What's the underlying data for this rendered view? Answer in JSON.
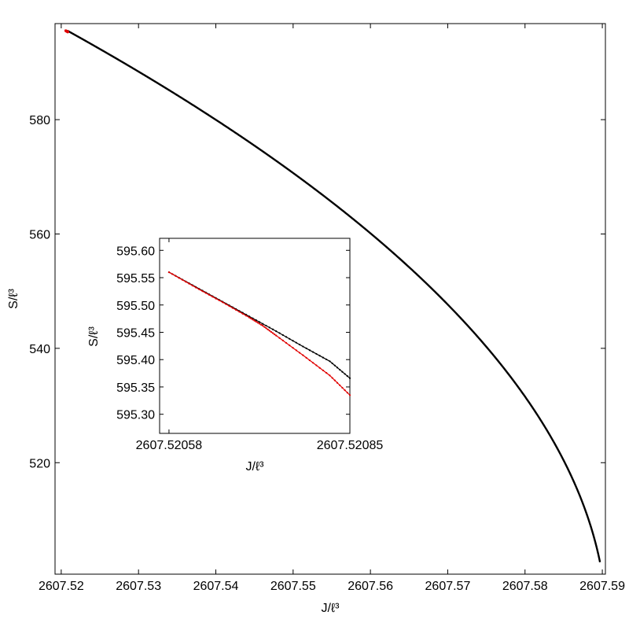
{
  "chart_data": [
    {
      "id": "main",
      "type": "scatter",
      "xlabel": "J/ℓ³",
      "ylabel": "S/ℓ³",
      "xlim": [
        2607.5192,
        2607.5904
      ],
      "ylim": [
        500.5,
        596.8
      ],
      "x_ticks": [
        2607.52,
        2607.53,
        2607.54,
        2607.55,
        2607.56,
        2607.57,
        2607.58,
        2607.59
      ],
      "x_tick_labels": [
        "2607.52",
        "2607.53",
        "2607.54",
        "2607.55",
        "2607.56",
        "2607.57",
        "2607.58",
        "2607.59"
      ],
      "y_ticks": [
        520,
        540,
        560,
        580
      ],
      "y_tick_labels": [
        "520",
        "540",
        "560",
        "580"
      ],
      "grid": false,
      "series": [
        {
          "color": "#000000",
          "curve": {
            "x_start": 2607.5208,
            "x_end": 2607.5897,
            "s_start": 595.56,
            "s_end": 502.6,
            "j_max": 2607.5906,
            "exponent": 0.5
          }
        },
        {
          "color": "#e00000",
          "x": [
            2607.52058,
            2607.52062,
            2607.52066,
            2607.5207,
            2607.52074,
            2607.52078,
            2607.52082,
            2607.52085
          ],
          "y": [
            595.56,
            595.53,
            595.5,
            595.47,
            595.44,
            595.41,
            595.37,
            595.335
          ]
        }
      ]
    },
    {
      "id": "inset",
      "type": "scatter",
      "xlabel": "J/ℓ³",
      "ylabel": "S/ℓ³",
      "xlim": [
        2607.520566,
        2607.52085
      ],
      "ylim": [
        595.265,
        595.622
      ],
      "x_ticks": [
        2607.52058,
        2607.52085
      ],
      "x_tick_labels": [
        "2607.52058",
        "2607.52085"
      ],
      "y_ticks": [
        595.3,
        595.35,
        595.4,
        595.45,
        595.5,
        595.55,
        595.6
      ],
      "y_tick_labels": [
        "595.30",
        "595.35",
        "595.40",
        "595.45",
        "595.50",
        "595.55",
        "595.60"
      ],
      "grid": false,
      "series": [
        {
          "color": "#000000",
          "x": [
            2607.52058,
            2607.52062,
            2607.52066,
            2607.5207,
            2607.52074,
            2607.52078,
            2607.52082,
            2607.52085
          ],
          "y": [
            595.56,
            595.533,
            595.506,
            595.479,
            595.452,
            595.424,
            595.397,
            595.366
          ]
        },
        {
          "color": "#e00000",
          "x": [
            2607.52058,
            2607.52062,
            2607.52066,
            2607.5207,
            2607.52072,
            2607.52074,
            2607.52078,
            2607.52082,
            2607.52085
          ],
          "y": [
            595.56,
            595.532,
            595.505,
            595.477,
            595.462,
            595.444,
            595.408,
            595.371,
            595.335
          ]
        }
      ]
    }
  ]
}
